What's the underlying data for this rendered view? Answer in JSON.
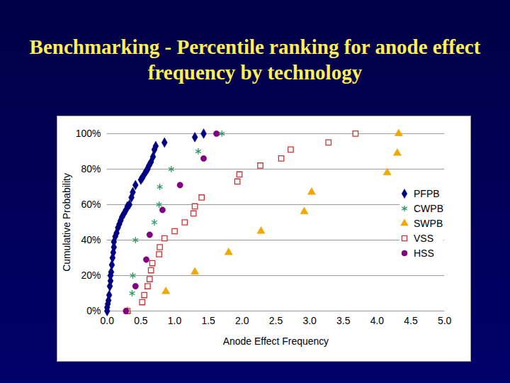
{
  "chart_data": {
    "type": "scatter",
    "title": "Benchmarking - Percentile ranking for anode effect frequency by technology",
    "x_label": "Anode Effect Frequency",
    "y_label": "Cumulative Probability",
    "xlim": [
      0,
      5
    ],
    "ylim": [
      0,
      100
    ],
    "xticks": [
      {
        "value": 0,
        "label": "0.0"
      },
      0.5,
      {
        "value": 1,
        "label": "1.0"
      },
      1.5,
      {
        "value": 2,
        "label": "2.0"
      },
      2.5,
      {
        "value": 3,
        "label": "3.0"
      },
      3.5,
      {
        "value": 4,
        "label": "4.0"
      },
      4.5,
      {
        "value": 5,
        "label": "5.0"
      }
    ],
    "yticks": [
      {
        "value": 0,
        "label": "0%"
      },
      {
        "value": 20,
        "label": "20%"
      },
      {
        "value": 40,
        "label": "40%"
      },
      {
        "value": 60,
        "label": "60%"
      },
      {
        "value": 80,
        "label": "80%"
      },
      {
        "value": 100,
        "label": "100%"
      }
    ],
    "grid": "y",
    "legend": "right",
    "series": [
      {
        "name": "PFPB",
        "color": "#000080",
        "marker": "diamond",
        "x": [
          0.0,
          0.0,
          0.01,
          0.02,
          0.03,
          0.04,
          0.05,
          0.05,
          0.06,
          0.07,
          0.08,
          0.09,
          0.1,
          0.1,
          0.12,
          0.14,
          0.16,
          0.18,
          0.2,
          0.22,
          0.25,
          0.28,
          0.3,
          0.33,
          0.36,
          0.38,
          0.42,
          0.5,
          0.52,
          0.55,
          0.58,
          0.6,
          0.62,
          0.65,
          0.68,
          0.7,
          0.72,
          0.85,
          1.3,
          1.43
        ],
        "values": [
          0,
          2,
          4,
          6,
          9,
          14,
          17,
          20,
          22,
          26,
          30,
          33,
          36,
          39,
          42,
          44,
          47,
          49,
          51,
          53,
          55,
          57,
          59,
          60,
          64,
          67,
          71,
          74,
          75,
          77,
          79,
          80,
          82,
          84,
          87,
          91,
          93,
          95,
          98,
          100
        ]
      },
      {
        "name": "CWPB",
        "color": "#339966",
        "marker": "asterisk",
        "x": [
          0.3,
          0.37,
          0.38,
          0.42,
          0.7,
          0.77,
          0.78,
          0.95,
          1.35,
          1.7
        ],
        "values": [
          0,
          10,
          20,
          40,
          50,
          60,
          70,
          80,
          90,
          100
        ]
      },
      {
        "name": "SWPB",
        "color": "#f0a800",
        "marker": "triangle",
        "x": [
          0.3,
          0.87,
          1.3,
          1.8,
          2.28,
          2.92,
          3.03,
          4.15,
          4.3,
          4.32
        ],
        "values": [
          0,
          11,
          22,
          33,
          45,
          56,
          67,
          78,
          89,
          100
        ]
      },
      {
        "name": "VSS",
        "color": "#cc3333",
        "marker": "square-open",
        "x": [
          0.3,
          0.52,
          0.55,
          0.6,
          0.63,
          0.65,
          0.67,
          0.77,
          0.78,
          0.85,
          1.0,
          1.15,
          1.28,
          1.3,
          1.4,
          1.93,
          1.96,
          2.27,
          2.58,
          2.72,
          3.28,
          3.68
        ],
        "values": [
          0,
          5,
          9,
          14,
          18,
          23,
          27,
          32,
          36,
          41,
          45,
          50,
          55,
          59,
          64,
          73,
          77,
          82,
          86,
          91,
          95,
          100
        ]
      },
      {
        "name": "HSS",
        "color": "#800080",
        "marker": "circle",
        "x": [
          0.28,
          0.42,
          0.58,
          0.63,
          0.82,
          1.08,
          1.43,
          1.62
        ],
        "values": [
          0,
          14,
          29,
          43,
          57,
          71,
          86,
          100
        ]
      }
    ]
  }
}
